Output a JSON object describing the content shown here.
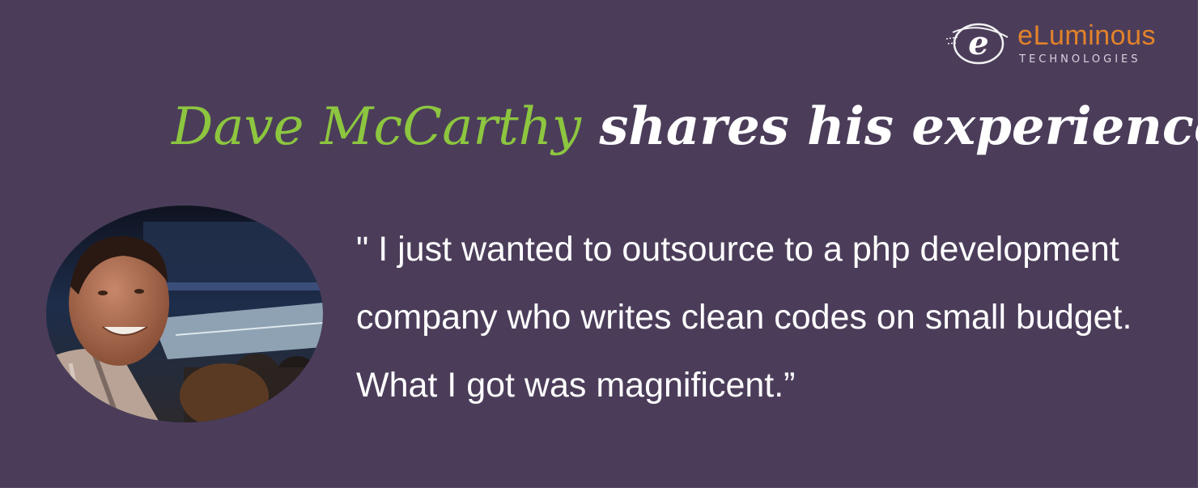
{
  "logo": {
    "mark_letter": "e",
    "brand": "eLuminous",
    "tagline": "TECHNOLOGIES"
  },
  "headline": {
    "name": "Dave McCarthy",
    "rest": " shares his experience"
  },
  "photo": {
    "icon": "person-photo"
  },
  "quote": {
    "lines": [
      "\" I just wanted to outsource to a php development",
      "company who writes clean codes on small budget.",
      "What I got was magnificent.”"
    ]
  },
  "colors": {
    "background": "#4b3d5a",
    "name_green": "#8dc63f",
    "brand_orange": "#e3822a",
    "text_white": "#ffffff"
  }
}
